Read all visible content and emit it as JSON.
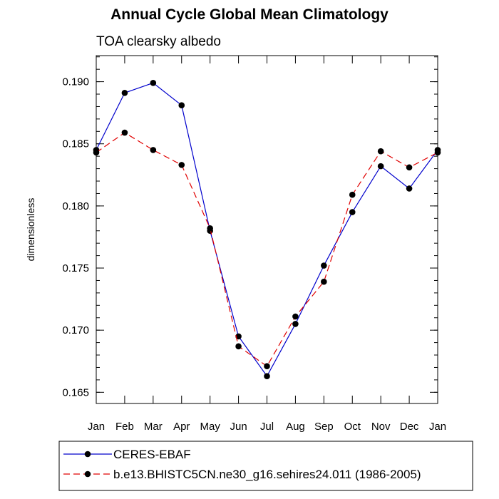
{
  "chart_data": {
    "type": "line",
    "title": "Annual Cycle Global Mean Climatology",
    "subtitle": "TOA clearsky albedo",
    "xlabel": "",
    "ylabel": "dimensionless",
    "categories": [
      "Jan",
      "Feb",
      "Mar",
      "Apr",
      "May",
      "Jun",
      "Jul",
      "Aug",
      "Sep",
      "Oct",
      "Nov",
      "Dec",
      "Jan"
    ],
    "ylim": [
      0.1641,
      0.1921
    ],
    "yticks": [
      0.165,
      0.17,
      0.175,
      0.18,
      0.185,
      0.19
    ],
    "ytick_labels": [
      "0.165",
      "0.170",
      "0.175",
      "0.180",
      "0.185",
      "0.190"
    ],
    "grid": false,
    "legend_position": "bottom",
    "series": [
      {
        "name": "CERES-EBAF",
        "color": "#0000cc",
        "dash": "solid",
        "marker": "filled-circle",
        "values": [
          0.1845,
          0.1891,
          0.1899,
          0.1881,
          0.178,
          0.1695,
          0.1663,
          0.1705,
          0.1752,
          0.1795,
          0.1832,
          0.1814,
          0.1845
        ]
      },
      {
        "name": "b.e13.BHISTC5CN.ne30_g16.sehires24.011 (1986-2005)",
        "color": "#e00000",
        "dash": "dashed",
        "marker": "filled-circle",
        "values": [
          0.1843,
          0.1859,
          0.1845,
          0.1833,
          0.1782,
          0.1687,
          0.1671,
          0.1711,
          0.1739,
          0.1809,
          0.1844,
          0.1831,
          0.1843
        ]
      }
    ]
  }
}
